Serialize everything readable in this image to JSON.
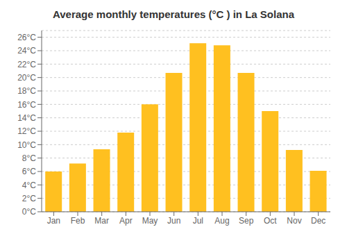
{
  "chart_data": {
    "type": "bar",
    "title": "Average monthly temperatures (°C ) in La Solana",
    "categories": [
      "Jan",
      "Feb",
      "Mar",
      "Apr",
      "May",
      "Jun",
      "Jul",
      "Aug",
      "Sep",
      "Oct",
      "Nov",
      "Dec"
    ],
    "values": [
      6.0,
      7.2,
      9.3,
      11.8,
      16.0,
      20.7,
      25.1,
      24.8,
      20.7,
      15.0,
      9.2,
      6.1
    ],
    "color": "#FFC020",
    "ylim": [
      0,
      27
    ],
    "yticks": [
      {
        "value": 0,
        "label": "0°C"
      },
      {
        "value": 2,
        "label": "2°C"
      },
      {
        "value": 4,
        "label": "4°C"
      },
      {
        "value": 6,
        "label": "6°C"
      },
      {
        "value": 8,
        "label": "8°C"
      },
      {
        "value": 10,
        "label": "10°C"
      },
      {
        "value": 12,
        "label": "12°C"
      },
      {
        "value": 14,
        "label": "14°C"
      },
      {
        "value": 16,
        "label": "16°C"
      },
      {
        "value": 18,
        "label": "18°C"
      },
      {
        "value": 20,
        "label": "20°C"
      },
      {
        "value": 22,
        "label": "22°C"
      },
      {
        "value": 24,
        "label": "24°C"
      },
      {
        "value": 26,
        "label": "26°C"
      }
    ],
    "grid": true
  }
}
